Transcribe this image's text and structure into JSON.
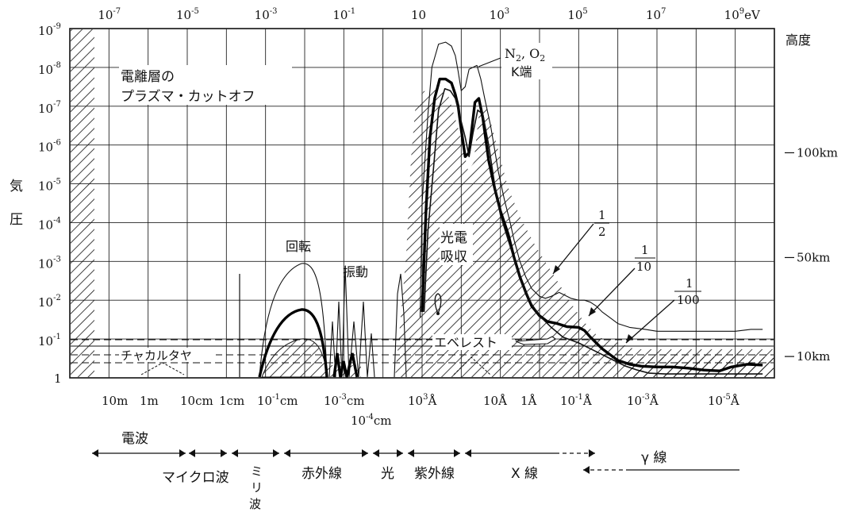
{
  "chart_data": {
    "type": "line",
    "title": "",
    "x_axis": {
      "top_label_prefix": "10",
      "top_ticks": [
        {
          "base": "10",
          "exp": "-7",
          "suffix": ""
        },
        {
          "base": "10",
          "exp": "-5",
          "suffix": ""
        },
        {
          "base": "10",
          "exp": "-3",
          "suffix": ""
        },
        {
          "base": "10",
          "exp": "-1",
          "suffix": ""
        },
        {
          "base": "10",
          "exp": "",
          "suffix": ""
        },
        {
          "base": "10",
          "exp": "3",
          "suffix": ""
        },
        {
          "base": "10",
          "exp": "5",
          "suffix": ""
        },
        {
          "base": "10",
          "exp": "7",
          "suffix": ""
        },
        {
          "base": "10",
          "exp": "9",
          "suffix": "eV"
        }
      ],
      "bottom_ticks": [
        {
          "text": "10m",
          "exp": ""
        },
        {
          "text": "1m",
          "exp": ""
        },
        {
          "text": "10cm",
          "exp": ""
        },
        {
          "text": "1cm",
          "exp": ""
        },
        {
          "text": "10",
          "exp": "-1",
          "tail": "cm"
        },
        {
          "text": "10",
          "exp": "-3",
          "tail": "cm"
        },
        {
          "text": "10",
          "exp": "-4",
          "tail": "cm"
        },
        {
          "text": "10",
          "exp": "3",
          "tail": "Å"
        },
        {
          "text": "10Å",
          "exp": ""
        },
        {
          "text": "1Å",
          "exp": ""
        },
        {
          "text": "10",
          "exp": "-1",
          "tail": "Å"
        },
        {
          "text": "10",
          "exp": "-3",
          "tail": "Å"
        },
        {
          "text": "10",
          "exp": "-5",
          "tail": "Å"
        }
      ]
    },
    "y_axis": {
      "label_chars": [
        "気",
        "圧"
      ],
      "ticks": [
        {
          "base": "10",
          "exp": "-9"
        },
        {
          "base": "10",
          "exp": "-8"
        },
        {
          "base": "10",
          "exp": "-7"
        },
        {
          "base": "10",
          "exp": "-6"
        },
        {
          "base": "10",
          "exp": "-5"
        },
        {
          "base": "10",
          "exp": "-4"
        },
        {
          "base": "10",
          "exp": "-3"
        },
        {
          "base": "10",
          "exp": "-2"
        },
        {
          "base": "10",
          "exp": "-1"
        },
        {
          "base": "1",
          "exp": ""
        }
      ]
    },
    "right_axis": {
      "title": "高度",
      "ticks": [
        {
          "label": "100km",
          "pressure_exp": -5.8
        },
        {
          "label": "50km",
          "pressure_exp": -3.1
        },
        {
          "label": "10km",
          "pressure_exp": -0.55
        }
      ]
    },
    "series": [
      {
        "name": "1/2",
        "x_log_ev": [
          0.95,
          1.0,
          1.15,
          1.25,
          1.42,
          1.6,
          1.75,
          1.85,
          1.92,
          2.0,
          2.1,
          2.2,
          2.4,
          2.5,
          2.6,
          2.75,
          2.85,
          2.95,
          3.1,
          3.25,
          3.35,
          3.5,
          3.65,
          3.8,
          4.0,
          4.15,
          4.3,
          4.5,
          4.8,
          5.0,
          5.15,
          5.3,
          5.45,
          5.6,
          5.8,
          6.0,
          6.3,
          6.7,
          7.0,
          7.4,
          7.8,
          8.2,
          8.6,
          9.0,
          9.4,
          9.7
        ],
        "y_log_pressure": [
          -1.55,
          -4.5,
          -6.8,
          -8.0,
          -8.6,
          -8.65,
          -8.55,
          -8.3,
          -7.9,
          -7.4,
          -7.5,
          -7.95,
          -8.05,
          -7.7,
          -7.2,
          -6.5,
          -5.9,
          -5.3,
          -4.6,
          -4.0,
          -3.55,
          -3.0,
          -2.6,
          -2.3,
          -2.1,
          -2.05,
          -2.1,
          -2.2,
          -2.05,
          -2.0,
          -2.0,
          -1.95,
          -1.85,
          -1.7,
          -1.55,
          -1.4,
          -1.3,
          -1.25,
          -1.2,
          -1.2,
          -1.2,
          -1.2,
          -1.2,
          -1.2,
          -1.25,
          -1.25
        ]
      },
      {
        "name": "1/10",
        "x_log_ev": [
          1.0,
          1.1,
          1.2,
          1.32,
          1.45,
          1.6,
          1.75,
          1.85,
          1.92,
          2.0,
          2.1,
          2.2,
          2.35,
          2.45,
          2.55,
          2.7,
          2.85,
          3.0,
          3.2,
          3.35,
          3.5,
          3.65,
          3.8,
          4.0,
          4.2,
          4.45,
          4.7,
          5.0,
          5.15,
          5.3,
          5.45,
          5.6,
          5.8,
          6.0,
          6.3,
          6.6,
          7.0,
          7.4,
          7.8,
          8.2,
          8.6,
          8.9,
          9.3,
          9.7
        ],
        "y_log_pressure": [
          -1.7,
          -4.3,
          -6.2,
          -7.2,
          -7.7,
          -7.7,
          -7.6,
          -7.3,
          -7.0,
          -6.4,
          -5.7,
          -5.8,
          -7.1,
          -7.2,
          -6.7,
          -5.6,
          -4.9,
          -4.3,
          -3.7,
          -3.1,
          -2.6,
          -2.2,
          -1.85,
          -1.6,
          -1.45,
          -1.4,
          -1.32,
          -1.3,
          -1.22,
          -1.05,
          -0.9,
          -0.75,
          -0.6,
          -0.45,
          -0.35,
          -0.3,
          -0.28,
          -0.28,
          -0.25,
          -0.2,
          -0.18,
          -0.28,
          -0.35,
          -0.33
        ]
      },
      {
        "name": "1/100",
        "x_log_ev": [
          1.05,
          1.15,
          1.3,
          1.42,
          1.58,
          1.72,
          1.85,
          1.95,
          2.1,
          2.2,
          2.3,
          2.42,
          2.55,
          2.7,
          2.85,
          3.0,
          3.2,
          3.4,
          3.6,
          3.8,
          4.0,
          4.3,
          4.6,
          5.0,
          5.3,
          5.6,
          5.9,
          6.2,
          6.5,
          6.8,
          7.2,
          7.6,
          8.0,
          8.4,
          8.8,
          9.2,
          9.5,
          9.7
        ],
        "y_log_pressure": [
          -1.7,
          -3.8,
          -5.5,
          -6.9,
          -7.45,
          -7.4,
          -7.2,
          -6.8,
          -6.2,
          -5.7,
          -6.3,
          -6.9,
          -6.8,
          -6.0,
          -5.0,
          -4.2,
          -3.55,
          -2.9,
          -2.3,
          -1.9,
          -1.6,
          -1.3,
          -1.05,
          -0.9,
          -0.75,
          -0.6,
          -0.45,
          -0.3,
          -0.2,
          -0.12,
          -0.1,
          -0.1,
          -0.1,
          -0.1,
          -0.1,
          -0.1,
          -0.1,
          -0.1
        ]
      }
    ],
    "labels": [
      {
        "id": "ionosphere",
        "lines": [
          "電離層の",
          "プラズマ・カットオフ"
        ]
      },
      {
        "id": "rotation",
        "lines": [
          "回転"
        ]
      },
      {
        "id": "vibration",
        "lines": [
          "振動"
        ]
      },
      {
        "id": "photo",
        "lines": [
          "光電",
          "吸収"
        ]
      },
      {
        "id": "n2o2",
        "lines": [
          "N",
          "2",
          ", O",
          "2"
        ]
      },
      {
        "id": "kedge",
        "lines": [
          "K端"
        ]
      },
      {
        "id": "everest",
        "lines": [
          "エベレスト"
        ]
      },
      {
        "id": "chacaltaya",
        "lines": [
          "チャカルタヤ"
        ]
      },
      {
        "id": "half",
        "lines": [
          "1",
          "2"
        ]
      },
      {
        "id": "tenth",
        "lines": [
          "1",
          "10"
        ]
      },
      {
        "id": "hundredth",
        "lines": [
          "1",
          "100"
        ]
      }
    ],
    "bands": [
      {
        "label": "電波"
      },
      {
        "label": "マイクロ波"
      },
      {
        "label": "ミ"
      },
      {
        "label": "リ"
      },
      {
        "label": "波"
      },
      {
        "label": "赤外線"
      },
      {
        "label": "光"
      },
      {
        "label": "紫外線"
      },
      {
        "label": "X 線"
      },
      {
        "label": "γ 線"
      }
    ]
  }
}
